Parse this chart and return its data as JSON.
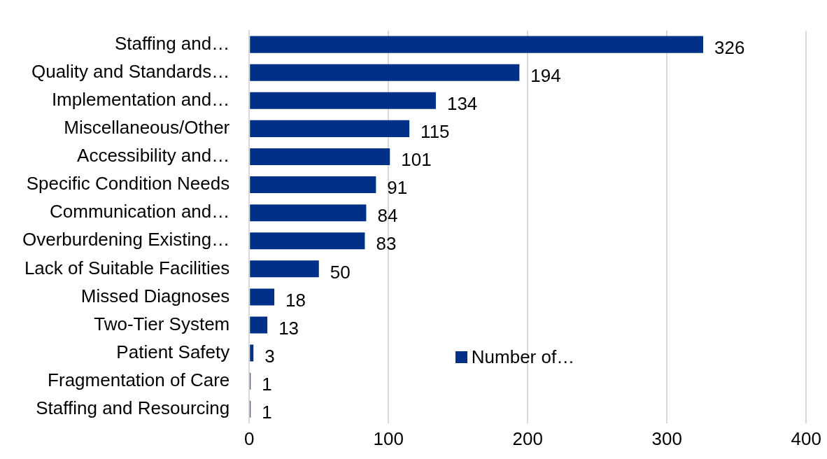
{
  "chart_data": {
    "type": "bar",
    "orientation": "horizontal",
    "categories": [
      "Staffing and…",
      "Quality and Standards…",
      "Implementation and…",
      "Miscellaneous/Other",
      "Accessibility and…",
      "Specific Condition Needs",
      "Communication and…",
      "Overburdening Existing…",
      "Lack of Suitable Facilities",
      "Missed Diagnoses",
      "Two-Tier System",
      "Patient Safety",
      "Fragmentation of Care",
      "Staffing and Resourcing"
    ],
    "series": [
      {
        "name": "Number of…",
        "color": "#003087",
        "values": [
          326,
          194,
          134,
          115,
          101,
          91,
          84,
          83,
          50,
          18,
          13,
          3,
          1,
          1
        ]
      }
    ],
    "xlim": [
      0,
      400
    ],
    "xticks": [
      0,
      100,
      200,
      300,
      400
    ],
    "grid": "x",
    "legend": "bottom right",
    "data_labels": true
  }
}
